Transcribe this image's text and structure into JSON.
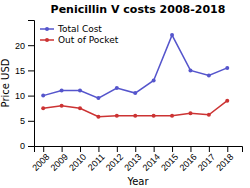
{
  "chart_data": {
    "type": "line",
    "title": "Penicillin V costs 2008-2018",
    "xlabel": "Year",
    "ylabel": "Price USD",
    "x": [
      2008,
      2009,
      2010,
      2011,
      2012,
      2013,
      2014,
      2015,
      2016,
      2017,
      2018
    ],
    "series": [
      {
        "name": "Total Cost",
        "color": "#5555cc",
        "marker": "circle",
        "values": [
          10.0,
          11.0,
          11.0,
          9.5,
          11.5,
          10.5,
          13.0,
          22.0,
          15.0,
          14.0,
          15.5
        ]
      },
      {
        "name": "Out of Pocket",
        "color": "#cc3333",
        "marker": "circle",
        "values": [
          7.5,
          8.0,
          7.5,
          5.8,
          6.0,
          6.0,
          6.0,
          6.0,
          6.5,
          6.2,
          9.0
        ]
      }
    ],
    "xlim": [
      2007.5,
      2018.8
    ],
    "xticks": [
      2008,
      2009,
      2010,
      2011,
      2012,
      2013,
      2014,
      2015,
      2016,
      2017,
      2018
    ],
    "ylim": [
      0,
      25
    ],
    "yticks": [
      0,
      5,
      10,
      15,
      20
    ],
    "grid": false,
    "legend": "upper left"
  }
}
